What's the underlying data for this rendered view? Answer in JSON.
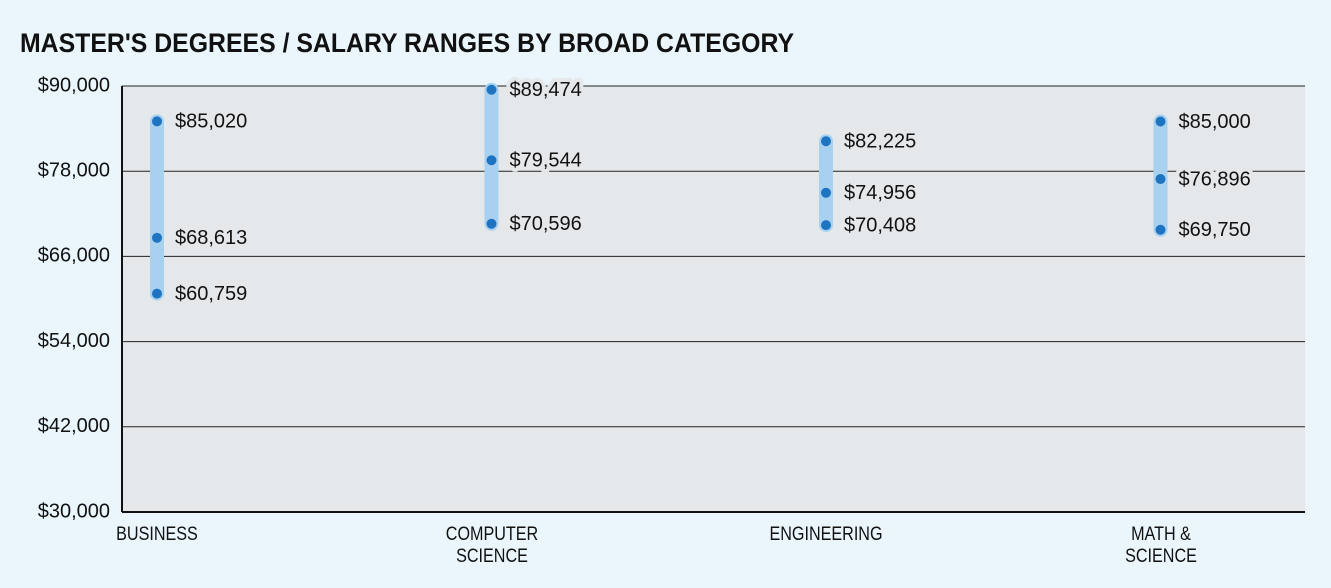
{
  "chart_data": {
    "type": "range",
    "title": "MASTER'S DEGREES / SALARY RANGES BY BROAD CATEGORY",
    "categories": [
      "BUSINESS",
      "COMPUTER SCIENCE",
      "ENGINEERING",
      "MATH & SCIENCE"
    ],
    "high": {
      "values": [
        85020,
        89474,
        82225,
        85000
      ],
      "value_labels": [
        "$85,020",
        "$89,474",
        "$82,225",
        "$85,000"
      ]
    },
    "mid": {
      "values": [
        68613,
        79544,
        74956,
        76896
      ],
      "value_labels": [
        "$68,613",
        "$79,544",
        "$74,956",
        "$76,896"
      ]
    },
    "low": {
      "values": [
        60759,
        70596,
        70408,
        69750
      ],
      "value_labels": [
        "$60,759",
        "$70,596",
        "$70,408",
        "$69,750"
      ]
    },
    "bar_color": "#a8d1f0",
    "dot_color": "#1f74c2",
    "ylim": [
      30000,
      90000
    ],
    "yticks": [
      {
        "value": 30000,
        "label": "$30,000"
      },
      {
        "value": 42000,
        "label": "$42,000"
      },
      {
        "value": 54000,
        "label": "$54,000"
      },
      {
        "value": 66000,
        "label": "$66,000"
      },
      {
        "value": 78000,
        "label": "$78,000"
      },
      {
        "value": 90000,
        "label": "$90,000"
      }
    ],
    "grid": true
  }
}
